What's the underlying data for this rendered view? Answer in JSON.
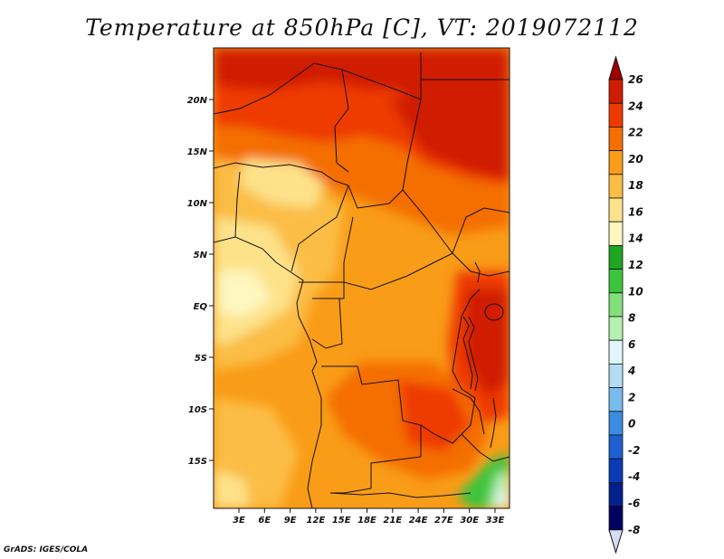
{
  "title": "Temperature at 850hPa [C], VT: 2019072112",
  "credit": "GrADS: IGES/COLA",
  "map": {
    "lon_range": [
      0,
      35
    ],
    "lat_range": [
      -19.5,
      24.5
    ],
    "lat_ticks": [
      "20N",
      "15N",
      "10N",
      "5N",
      "EQ",
      "5S",
      "10S",
      "15S"
    ],
    "lon_ticks": [
      "3E",
      "6E",
      "9E",
      "12E",
      "15E",
      "18E",
      "21E",
      "24E",
      "27E",
      "30E",
      "33E"
    ]
  },
  "colorbar": {
    "labels": [
      "26",
      "24",
      "22",
      "20",
      "18",
      "16",
      "14",
      "12",
      "10",
      "8",
      "6",
      "4",
      "2",
      "0",
      "-2",
      "-4",
      "-6",
      "-8"
    ],
    "colors": [
      "#a00000",
      "#d01c00",
      "#ee3a00",
      "#f46e00",
      "#f99c17",
      "#fbbd44",
      "#fde28a",
      "#fff6c0",
      "#1ea521",
      "#3cc43c",
      "#82e07a",
      "#b4f0b0",
      "#e0f6f8",
      "#b4dcf4",
      "#78bcee",
      "#3c8ce2",
      "#1e60d0",
      "#0a3ab4",
      "#00208c",
      "#000060",
      "#d6dcf6"
    ]
  }
}
